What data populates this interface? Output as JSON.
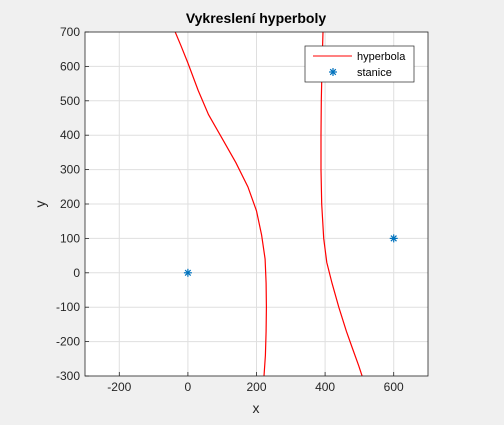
{
  "chart_data": {
    "type": "line",
    "title": "Vykreslení hyperboly",
    "xlabel": "x",
    "ylabel": "y",
    "xlim": [
      -300,
      700
    ],
    "ylim": [
      -300,
      700
    ],
    "xticks": [
      -200,
      0,
      200,
      400,
      600
    ],
    "yticks": [
      -300,
      -200,
      -100,
      0,
      100,
      200,
      300,
      400,
      500,
      600,
      700
    ],
    "grid": true,
    "legend_position": "top-right",
    "series": [
      {
        "name": "hyperbola",
        "type": "line",
        "color": "#ff0000",
        "branches": [
          {
            "x": [
              -37,
              -20,
              0,
              30,
              60,
              100,
              140,
              175,
              200,
              215,
              225,
              228,
              229,
              228,
              226,
              222
            ],
            "y": [
              700,
              660,
              610,
              530,
              460,
              390,
              320,
              250,
              180,
              110,
              40,
              -30,
              -100,
              -170,
              -240,
              -300
            ]
          },
          {
            "x": [
              394,
              391,
              389,
              388,
              388,
              390,
              396,
              405,
              420,
              440,
              462,
              480,
              498,
              508
            ],
            "y": [
              700,
              600,
              500,
              400,
              300,
              200,
              100,
              30,
              -30,
              -100,
              -170,
              -220,
              -270,
              -300
            ]
          }
        ]
      },
      {
        "name": "stanice",
        "type": "scatter",
        "marker": "asterisk",
        "color": "#0072bd",
        "x": [
          0,
          600
        ],
        "y": [
          0,
          100
        ]
      }
    ]
  }
}
